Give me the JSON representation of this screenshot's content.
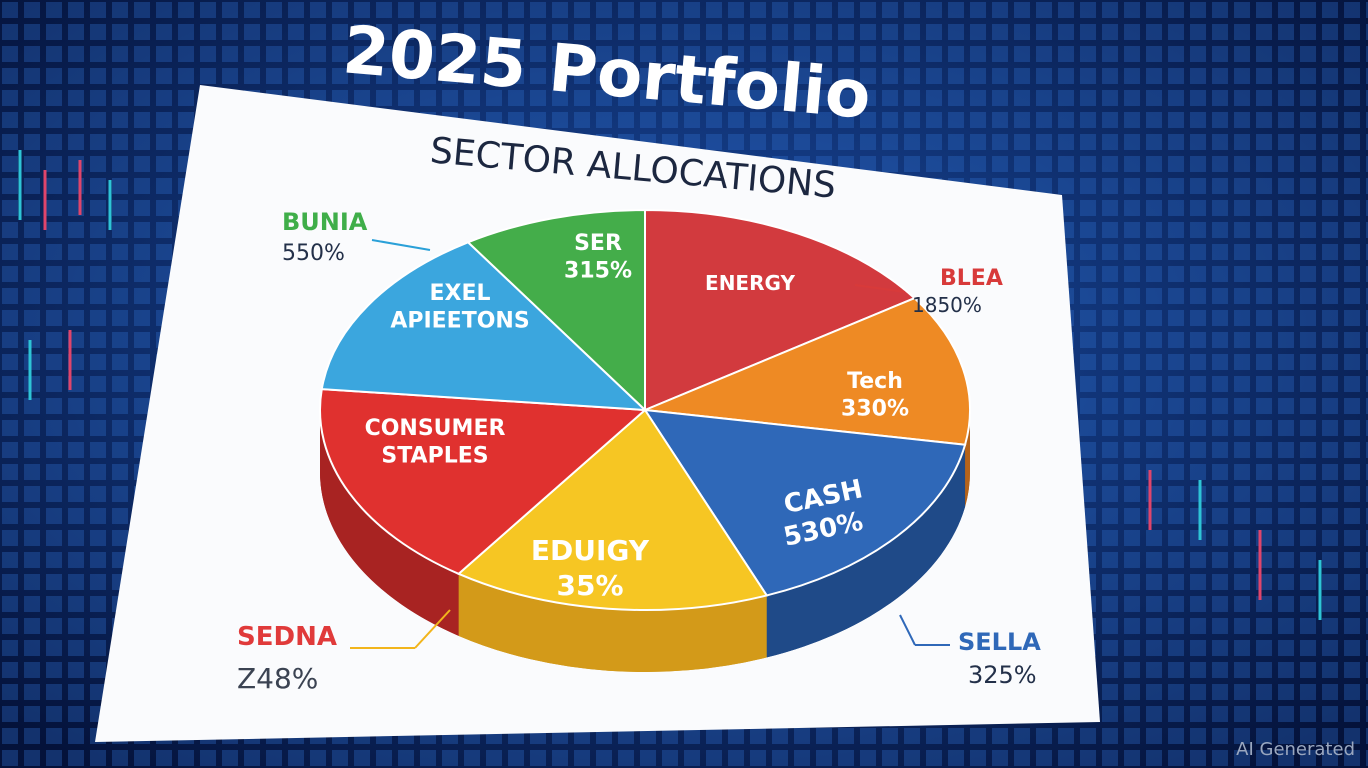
{
  "title": "2025 Portfolio",
  "subtitle": "SECTOR ALLOCATIONS",
  "slices": [
    {
      "lines": [
        "SER",
        "315%"
      ]
    },
    {
      "lines": [
        "ENERGY"
      ]
    },
    {
      "lines": [
        "Tech",
        "330%"
      ]
    },
    {
      "lines": [
        "CASH",
        "530%"
      ]
    },
    {
      "lines": [
        "EDUIGY",
        "35%"
      ]
    },
    {
      "lines": [
        "CONSUMER",
        "STAPLES"
      ]
    },
    {
      "lines": [
        "EXEL",
        "APIEETONS"
      ]
    }
  ],
  "callouts": [
    {
      "label": "BUNIA",
      "value": "550%"
    },
    {
      "label": "BLEA",
      "value": "1850%"
    },
    {
      "label": "SEDNA",
      "value": "Z48%"
    },
    {
      "label": "SELLA",
      "value": "325%"
    }
  ],
  "watermark": "AI Generated"
}
